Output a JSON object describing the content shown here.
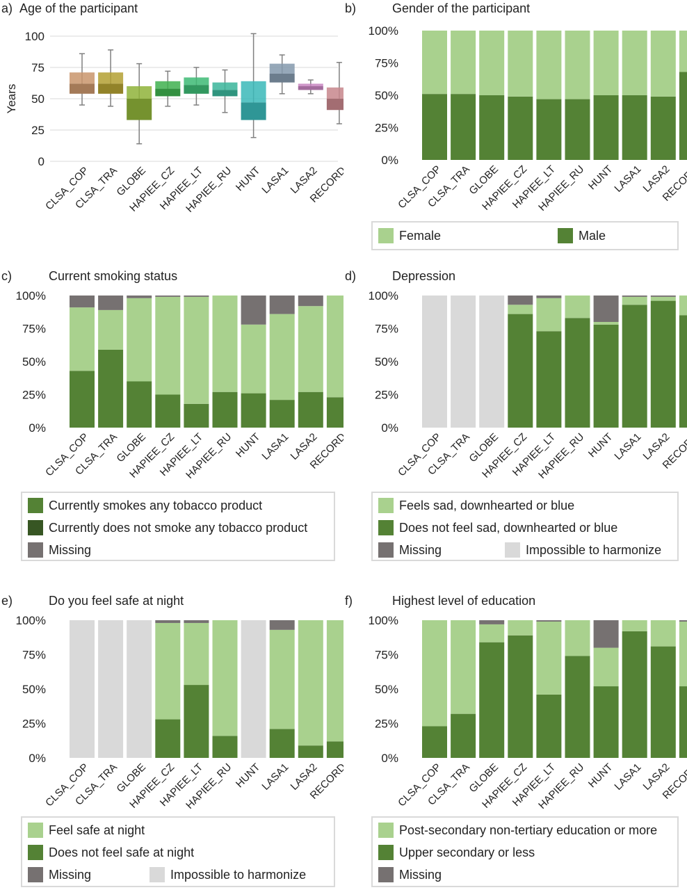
{
  "categories": [
    "CLSA_COP",
    "CLSA_TRA",
    "GLOBE",
    "HAPIEE_CZ",
    "HAPIEE_LT",
    "HAPIEE_RU",
    "HUNT",
    "LASA1",
    "LASA2",
    "RECORD"
  ],
  "colors": {
    "female": "#a9d18e",
    "male": "#548235",
    "smokes": "#548235",
    "nonsmoker": "#a9d18e",
    "missing": "#767171",
    "impossible": "#d9d9d9",
    "dark_green": "#375623",
    "grid": "#d9d9d9",
    "axis": "#bfbfbf",
    "whisker": "#808080"
  },
  "chart_data": [
    {
      "id": "a",
      "type": "box",
      "label": "a)",
      "title": "Age of the participant",
      "ylabel": "Years",
      "ylim": [
        0,
        100
      ],
      "yticks": [
        0,
        25,
        50,
        75,
        100
      ],
      "boxes": [
        {
          "min": 45,
          "q1": 54,
          "median": 62,
          "q3": 71,
          "max": 86,
          "color": "#c9956c"
        },
        {
          "min": 44,
          "q1": 54,
          "median": 62,
          "q3": 71,
          "max": 89,
          "color": "#b3a033"
        },
        {
          "min": 14,
          "q1": 33,
          "median": 50,
          "q3": 60,
          "max": 78,
          "color": "#8fb33a"
        },
        {
          "min": 44,
          "q1": 52,
          "median": 58,
          "q3": 64,
          "max": 72,
          "color": "#3fb04f"
        },
        {
          "min": 45,
          "q1": 54,
          "median": 61,
          "q3": 67,
          "max": 75,
          "color": "#3dba74"
        },
        {
          "min": 39,
          "q1": 52,
          "median": 57,
          "q3": 63,
          "max": 73,
          "color": "#3ab59a"
        },
        {
          "min": 19,
          "q1": 33,
          "median": 47,
          "q3": 64,
          "max": 102,
          "color": "#3ab8b8"
        },
        {
          "min": 54,
          "q1": 63,
          "median": 70,
          "q3": 78,
          "max": 85,
          "color": "#8499ad"
        },
        {
          "min": 54,
          "q1": 57,
          "median": 60,
          "q3": 62,
          "max": 65,
          "color": "#c784c0"
        },
        {
          "min": 30,
          "q1": 41,
          "median": 50,
          "q3": 59,
          "max": 79,
          "color": "#c7868c"
        }
      ]
    },
    {
      "id": "b",
      "type": "stacked-bar",
      "label": "b)",
      "title": "Gender of the participant",
      "yticks": [
        "0%",
        "25%",
        "50%",
        "75%",
        "100%"
      ],
      "series": [
        {
          "name": "Male",
          "color": "#548235",
          "values": [
            51,
            51,
            50,
            49,
            47,
            47,
            50,
            50,
            49,
            68
          ]
        },
        {
          "name": "Female",
          "color": "#a9d18e",
          "values": [
            49,
            49,
            50,
            51,
            53,
            53,
            50,
            50,
            51,
            32
          ]
        }
      ],
      "legend": [
        {
          "name": "Female",
          "color": "#a9d18e"
        },
        {
          "name": "Male",
          "color": "#548235"
        }
      ],
      "legend_layout": "row"
    },
    {
      "id": "c",
      "type": "stacked-bar",
      "label": "c)",
      "title": "Current smoking status",
      "yticks": [
        "0%",
        "25%",
        "50%",
        "75%",
        "100%"
      ],
      "series": [
        {
          "name": "Currently smokes any tobacco product",
          "color": "#548235",
          "values": [
            43,
            59,
            35,
            25,
            18,
            27,
            26,
            21,
            27,
            23
          ]
        },
        {
          "name": "Currently does not smoke any tobacco product",
          "color": "#a9d18e",
          "values": [
            48,
            30,
            63,
            74,
            81,
            73,
            52,
            65,
            65,
            77
          ]
        },
        {
          "name": "Missing",
          "color": "#767171",
          "values": [
            9,
            11,
            2,
            1,
            1,
            0,
            22,
            14,
            8,
            0
          ]
        }
      ],
      "legend": [
        {
          "name": "Currently smokes any tobacco product",
          "color": "#548235"
        },
        {
          "name": "Currently does not smoke any tobacco product",
          "color": "#375623"
        },
        {
          "name": "Missing",
          "color": "#767171"
        }
      ],
      "legend_layout": "column"
    },
    {
      "id": "d",
      "type": "stacked-bar",
      "label": "d)",
      "title": "Depression",
      "yticks": [
        "0%",
        "25%",
        "50%",
        "75%",
        "100%"
      ],
      "series": [
        {
          "name": "Impossible to harmonize",
          "color": "#d9d9d9",
          "values": [
            100,
            100,
            100,
            0,
            0,
            0,
            0,
            0,
            0,
            0
          ]
        },
        {
          "name": "Does not feel sad, downhearted or blue",
          "color": "#548235",
          "values": [
            0,
            0,
            0,
            86,
            73,
            83,
            78,
            93,
            96,
            85
          ]
        },
        {
          "name": "Feels sad, downhearted or blue",
          "color": "#a9d18e",
          "values": [
            0,
            0,
            0,
            7,
            25,
            17,
            2,
            6,
            3,
            15
          ]
        },
        {
          "name": "Missing",
          "color": "#767171",
          "values": [
            0,
            0,
            0,
            7,
            2,
            0,
            20,
            1,
            1,
            0
          ]
        }
      ],
      "legend": [
        {
          "name": "Feels sad, downhearted or blue",
          "color": "#a9d18e"
        },
        {
          "name": "Does not feel sad, downhearted or blue",
          "color": "#548235"
        },
        {
          "name": "Missing",
          "color": "#767171"
        },
        {
          "name": "Impossible to harmonize",
          "color": "#d9d9d9"
        }
      ],
      "legend_layout": "grid"
    },
    {
      "id": "e",
      "type": "stacked-bar",
      "label": "e)",
      "title": "Do you feel safe at night",
      "yticks": [
        "0%",
        "25%",
        "50%",
        "75%",
        "100%"
      ],
      "series": [
        {
          "name": "Impossible to harmonize",
          "color": "#d9d9d9",
          "values": [
            100,
            100,
            100,
            0,
            0,
            0,
            100,
            0,
            0,
            0
          ]
        },
        {
          "name": "Does not feel safe at night",
          "color": "#548235",
          "values": [
            0,
            0,
            0,
            28,
            53,
            16,
            0,
            21,
            9,
            12
          ]
        },
        {
          "name": "Feel safe at night",
          "color": "#a9d18e",
          "values": [
            0,
            0,
            0,
            70,
            45,
            84,
            0,
            72,
            91,
            88
          ]
        },
        {
          "name": "Missing",
          "color": "#767171",
          "values": [
            0,
            0,
            0,
            2,
            2,
            0,
            0,
            7,
            0,
            0
          ]
        }
      ],
      "legend": [
        {
          "name": "Feel safe at night",
          "color": "#a9d18e"
        },
        {
          "name": "Does not feel safe at night",
          "color": "#548235"
        },
        {
          "name": "Missing",
          "color": "#767171"
        },
        {
          "name": "Impossible to harmonize",
          "color": "#d9d9d9"
        }
      ],
      "legend_layout": "grid"
    },
    {
      "id": "f",
      "type": "stacked-bar",
      "label": "f)",
      "title": "Highest level of education",
      "yticks": [
        "0%",
        "25%",
        "50%",
        "75%",
        "100%"
      ],
      "series": [
        {
          "name": "Upper secondary or less",
          "color": "#548235",
          "values": [
            23,
            32,
            84,
            89,
            46,
            74,
            52,
            92,
            81,
            52
          ]
        },
        {
          "name": "Post-secondary non-tertiary education or more",
          "color": "#a9d18e",
          "values": [
            77,
            68,
            13,
            11,
            53,
            26,
            28,
            8,
            19,
            47
          ]
        },
        {
          "name": "Missing",
          "color": "#767171",
          "values": [
            0,
            0,
            3,
            0,
            1,
            0,
            20,
            0,
            0,
            1
          ]
        }
      ],
      "legend": [
        {
          "name": "Post-secondary non-tertiary education or more",
          "color": "#a9d18e"
        },
        {
          "name": "Upper secondary or less",
          "color": "#548235"
        },
        {
          "name": "Missing",
          "color": "#767171"
        }
      ],
      "legend_layout": "column"
    }
  ]
}
